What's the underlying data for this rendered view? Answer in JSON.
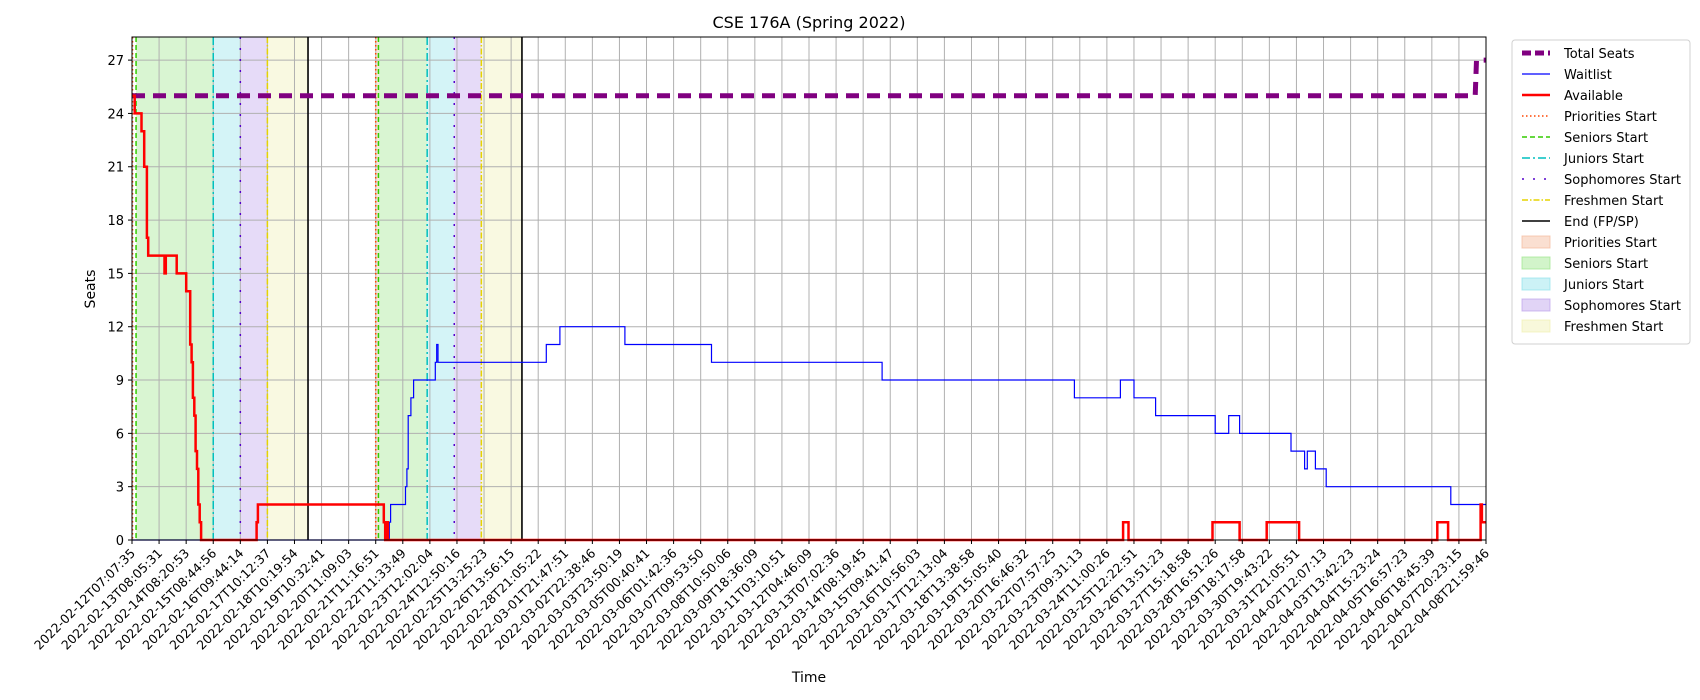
{
  "chart_data": {
    "type": "line",
    "title": "CSE 176A (Spring 2022)",
    "xlabel": "Time",
    "ylabel": "Seats",
    "ylim": [
      0,
      28.3
    ],
    "y_ticks": [
      0,
      3,
      6,
      9,
      12,
      15,
      18,
      21,
      24,
      27
    ],
    "x_tick_labels": [
      "2022-02-12T07:07:35",
      "2022-02-13T08:05:31",
      "2022-02-14T08:20:53",
      "2022-02-15T08:44:56",
      "2022-02-16T09:44:14",
      "2022-02-17T10:12:37",
      "2022-02-18T10:19:54",
      "2022-02-19T10:32:41",
      "2022-02-20T11:09:03",
      "2022-02-21T11:16:51",
      "2022-02-22T11:33:49",
      "2022-02-23T12:02:04",
      "2022-02-24T12:50:16",
      "2022-02-25T13:25:23",
      "2022-02-26T13:56:15",
      "2022-02-28T21:05:22",
      "2022-03-01T21:47:51",
      "2022-03-02T22:38:46",
      "2022-03-03T23:50:19",
      "2022-03-05T00:40:41",
      "2022-03-06T01:42:36",
      "2022-03-07T09:53:50",
      "2022-03-08T10:50:06",
      "2022-03-09T18:36:09",
      "2022-03-11T03:10:51",
      "2022-03-12T04:46:09",
      "2022-03-13T07:02:36",
      "2022-03-14T08:19:45",
      "2022-03-15T09:41:47",
      "2022-03-16T10:56:03",
      "2022-03-17T12:13:04",
      "2022-03-18T13:38:58",
      "2022-03-19T15:05:40",
      "2022-03-20T16:46:32",
      "2022-03-22T07:57:25",
      "2022-03-23T09:31:13",
      "2022-03-24T11:00:26",
      "2022-03-25T12:22:51",
      "2022-03-26T13:51:23",
      "2022-03-27T15:18:58",
      "2022-03-28T16:51:26",
      "2022-03-29T18:17:58",
      "2022-03-30T19:43:22",
      "2022-03-31T21:05:51",
      "2022-04-02T12:07:13",
      "2022-04-03T13:42:23",
      "2022-04-04T15:23:24",
      "2022-04-05T16:57:23",
      "2022-04-06T18:45:39",
      "2022-04-07T20:23:15",
      "2022-04-08T21:59:46"
    ],
    "x_index_range": [
      0,
      50
    ],
    "grid": true,
    "legend_position": "outside-right",
    "series": [
      {
        "name": "Total Seats",
        "color": "#800080",
        "style": "dashed-thick",
        "points": [
          [
            0,
            25
          ],
          [
            49.6,
            25
          ],
          [
            49.6,
            25
          ],
          [
            49.65,
            27
          ],
          [
            50,
            27
          ]
        ]
      },
      {
        "name": "Waitlist",
        "color": "#0000ff",
        "style": "solid-thin",
        "points": [
          [
            0,
            0
          ],
          [
            9.35,
            0
          ],
          [
            9.35,
            1
          ],
          [
            9.4,
            1
          ],
          [
            9.4,
            0
          ],
          [
            9.5,
            0
          ],
          [
            9.5,
            1
          ],
          [
            9.55,
            1
          ],
          [
            9.55,
            2
          ],
          [
            10.1,
            2
          ],
          [
            10.1,
            3
          ],
          [
            10.15,
            3
          ],
          [
            10.15,
            4
          ],
          [
            10.2,
            4
          ],
          [
            10.2,
            7
          ],
          [
            10.3,
            7
          ],
          [
            10.3,
            8
          ],
          [
            10.4,
            8
          ],
          [
            10.4,
            9
          ],
          [
            11.2,
            9
          ],
          [
            11.2,
            10
          ],
          [
            11.25,
            10
          ],
          [
            11.25,
            11
          ],
          [
            11.3,
            11
          ],
          [
            11.3,
            10
          ],
          [
            15.3,
            10
          ],
          [
            15.3,
            11
          ],
          [
            15.8,
            11
          ],
          [
            15.8,
            12
          ],
          [
            18.2,
            12
          ],
          [
            18.2,
            11
          ],
          [
            21.4,
            11
          ],
          [
            21.4,
            10
          ],
          [
            27.7,
            10
          ],
          [
            27.7,
            9
          ],
          [
            34.8,
            9
          ],
          [
            34.8,
            8
          ],
          [
            36.5,
            8
          ],
          [
            36.5,
            9
          ],
          [
            37.0,
            9
          ],
          [
            37.0,
            8
          ],
          [
            37.8,
            8
          ],
          [
            37.8,
            7
          ],
          [
            40.0,
            7
          ],
          [
            40.0,
            6
          ],
          [
            40.5,
            6
          ],
          [
            40.5,
            7
          ],
          [
            40.9,
            7
          ],
          [
            40.9,
            6
          ],
          [
            42.8,
            6
          ],
          [
            42.8,
            5
          ],
          [
            43.3,
            5
          ],
          [
            43.3,
            4
          ],
          [
            43.4,
            4
          ],
          [
            43.4,
            5
          ],
          [
            43.7,
            5
          ],
          [
            43.7,
            4
          ],
          [
            44.1,
            4
          ],
          [
            44.1,
            3
          ],
          [
            48.7,
            3
          ],
          [
            48.7,
            2
          ],
          [
            50,
            2
          ]
        ]
      },
      {
        "name": "Available",
        "color": "#ff0000",
        "style": "solid-thick",
        "points": [
          [
            0,
            25
          ],
          [
            0.1,
            25
          ],
          [
            0.1,
            24
          ],
          [
            0.35,
            24
          ],
          [
            0.35,
            23
          ],
          [
            0.45,
            23
          ],
          [
            0.45,
            21
          ],
          [
            0.55,
            21
          ],
          [
            0.55,
            17
          ],
          [
            0.6,
            17
          ],
          [
            0.6,
            16
          ],
          [
            1.2,
            16
          ],
          [
            1.2,
            15
          ],
          [
            1.25,
            15
          ],
          [
            1.25,
            16
          ],
          [
            1.65,
            16
          ],
          [
            1.65,
            15
          ],
          [
            2.0,
            15
          ],
          [
            2.0,
            14
          ],
          [
            2.15,
            14
          ],
          [
            2.15,
            11
          ],
          [
            2.2,
            11
          ],
          [
            2.2,
            10
          ],
          [
            2.25,
            10
          ],
          [
            2.25,
            8
          ],
          [
            2.3,
            8
          ],
          [
            2.3,
            7
          ],
          [
            2.35,
            7
          ],
          [
            2.35,
            5
          ],
          [
            2.4,
            5
          ],
          [
            2.4,
            4
          ],
          [
            2.45,
            4
          ],
          [
            2.45,
            2
          ],
          [
            2.5,
            2
          ],
          [
            2.5,
            1
          ],
          [
            2.55,
            1
          ],
          [
            2.55,
            0
          ],
          [
            4.6,
            0
          ],
          [
            4.6,
            1
          ],
          [
            4.65,
            1
          ],
          [
            4.65,
            2
          ],
          [
            9.3,
            2
          ],
          [
            9.3,
            1
          ],
          [
            9.35,
            1
          ],
          [
            9.35,
            0
          ],
          [
            9.4,
            0
          ],
          [
            9.4,
            1
          ],
          [
            9.45,
            1
          ],
          [
            9.45,
            0
          ],
          [
            36.6,
            0
          ],
          [
            36.6,
            1
          ],
          [
            36.8,
            1
          ],
          [
            36.8,
            0
          ],
          [
            39.9,
            0
          ],
          [
            39.9,
            1
          ],
          [
            40.9,
            1
          ],
          [
            40.9,
            0
          ],
          [
            41.9,
            0
          ],
          [
            41.9,
            1
          ],
          [
            43.1,
            1
          ],
          [
            43.1,
            0
          ],
          [
            48.2,
            0
          ],
          [
            48.2,
            1
          ],
          [
            48.6,
            1
          ],
          [
            48.6,
            0
          ],
          [
            49.8,
            0
          ],
          [
            49.8,
            2
          ],
          [
            49.85,
            2
          ],
          [
            49.85,
            1
          ],
          [
            50,
            1
          ]
        ]
      }
    ],
    "phase_lines": [
      {
        "name": "Priorities Start",
        "color": "#ff4500",
        "style": "dotted",
        "x": [
          0.02,
          9.0
        ]
      },
      {
        "name": "Seniors Start",
        "color": "#33cc00",
        "style": "dashed",
        "x": [
          0.15,
          9.1
        ]
      },
      {
        "name": "Juniors Start",
        "color": "#00bfbf",
        "style": "dashdot",
        "x": [
          3.0,
          10.9
        ]
      },
      {
        "name": "Sophomores Start",
        "color": "#5500cc",
        "style": "sparse-dot",
        "x": [
          4.0,
          11.9
        ]
      },
      {
        "name": "Freshmen Start",
        "color": "#e6d400",
        "style": "dashdot-thin",
        "x": [
          5.0,
          12.9
        ]
      },
      {
        "name": "End (FP/SP)",
        "color": "#000000",
        "style": "solid",
        "x": [
          6.5,
          14.4
        ]
      }
    ],
    "phase_bands": [
      {
        "name": "Priorities Start",
        "color": "#f4b89a",
        "ranges": [
          [
            0.0,
            0.02
          ],
          [
            9.0,
            9.1
          ]
        ]
      },
      {
        "name": "Seniors Start",
        "color": "#9be68a",
        "ranges": [
          [
            0.15,
            3.0
          ],
          [
            9.1,
            10.9
          ]
        ]
      },
      {
        "name": "Juniors Start",
        "color": "#8ee3ea",
        "ranges": [
          [
            3.0,
            4.0
          ],
          [
            10.9,
            11.9
          ]
        ]
      },
      {
        "name": "Sophomores Start",
        "color": "#bca0ec",
        "ranges": [
          [
            4.0,
            5.0
          ],
          [
            11.9,
            12.9
          ]
        ]
      },
      {
        "name": "Freshmen Start",
        "color": "#f0f0b0",
        "ranges": [
          [
            5.0,
            6.5
          ],
          [
            12.9,
            14.4
          ]
        ]
      }
    ]
  }
}
